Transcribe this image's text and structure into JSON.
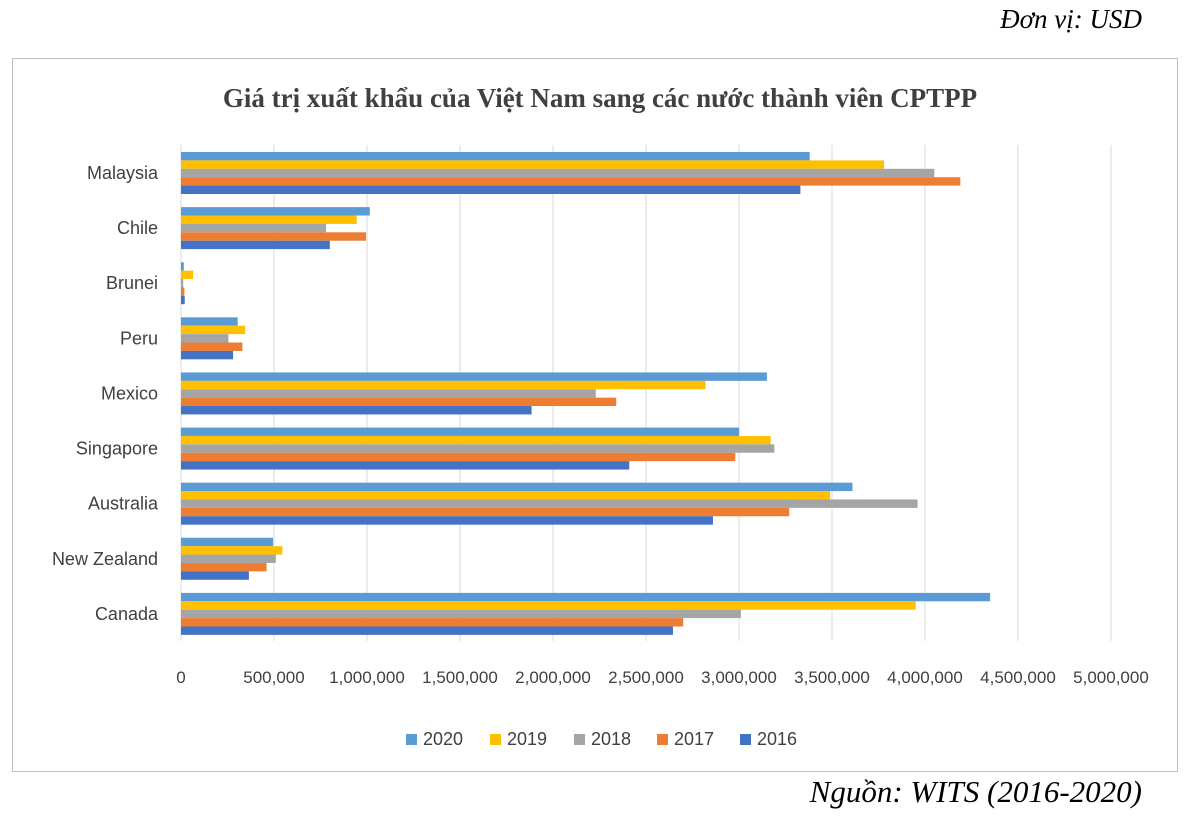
{
  "unit_label": "Đơn vị: USD",
  "source_label": "Nguồn: WITS (2016-2020)",
  "chart_data": {
    "type": "bar",
    "orientation": "horizontal",
    "title": "Giá trị xuất khẩu của Việt Nam sang các nước thành viên CPTPP",
    "categories": [
      "Malaysia",
      "Chile",
      "Brunei",
      "Peru",
      "Mexico",
      "Singapore",
      "Australia",
      "New Zealand",
      "Canada"
    ],
    "series": [
      {
        "name": "2020",
        "color": "#5B9BD5",
        "values": [
          3380000,
          1015000,
          15000,
          305000,
          3150000,
          3000000,
          3610000,
          495000,
          4350000
        ]
      },
      {
        "name": "2019",
        "color": "#FFC000",
        "values": [
          3780000,
          945000,
          65000,
          345000,
          2820000,
          3170000,
          3490000,
          545000,
          3950000
        ]
      },
      {
        "name": "2018",
        "color": "#A5A5A5",
        "values": [
          4050000,
          780000,
          12000,
          255000,
          2230000,
          3190000,
          3960000,
          510000,
          3010000
        ]
      },
      {
        "name": "2017",
        "color": "#ED7D31",
        "values": [
          4190000,
          995000,
          18000,
          330000,
          2340000,
          2980000,
          3270000,
          460000,
          2700000
        ]
      },
      {
        "name": "2016",
        "color": "#4472C4",
        "values": [
          3330000,
          800000,
          20000,
          280000,
          1885000,
          2410000,
          2860000,
          365000,
          2645000
        ]
      }
    ],
    "ticks": [
      "0",
      "500,000",
      "1,000,000",
      "1,500,000",
      "2,000,000",
      "2,500,000",
      "3,000,000",
      "3,500,000",
      "4,000,000",
      "4,500,000",
      "5,000,000"
    ],
    "xlim": [
      0,
      5000000
    ],
    "grid": true,
    "legend_position": "bottom"
  }
}
